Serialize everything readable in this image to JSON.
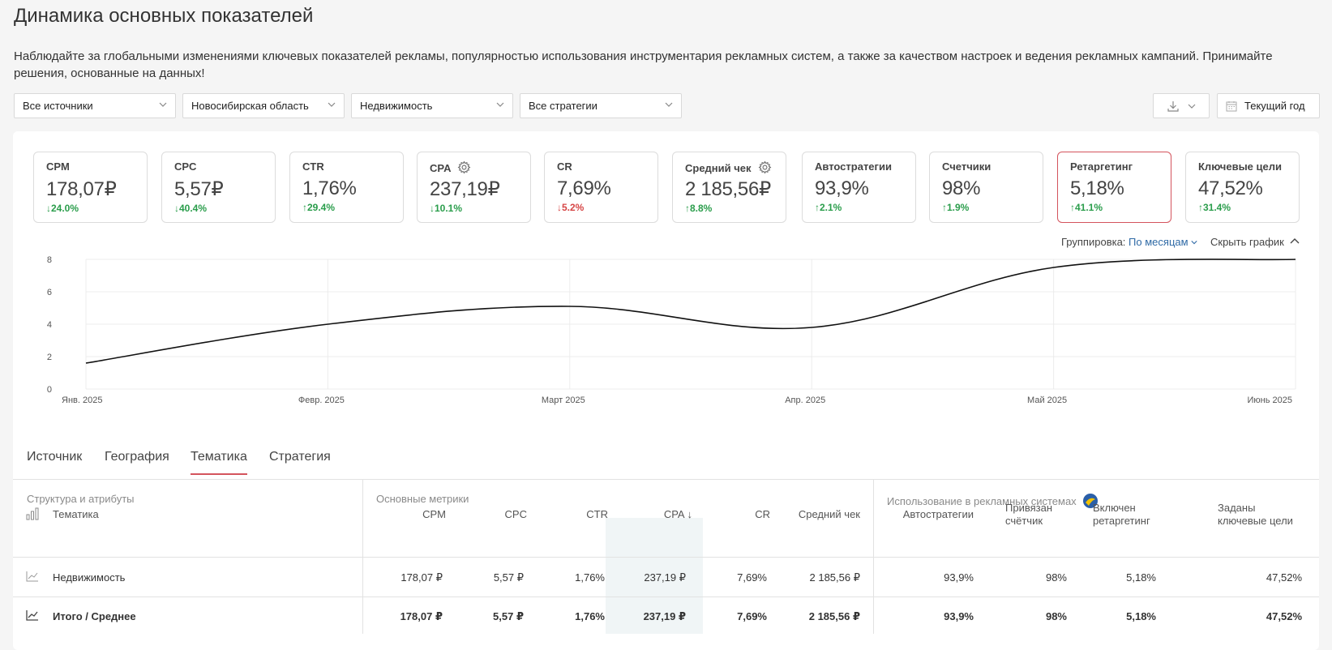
{
  "page": {
    "title": "Динамика основных показателей",
    "description": "Наблюдайте за глобальными изменениями ключевых показателей рекламы, популярностью использования инструментария рекламных систем, а также за качеством настроек и ведения рекламных кампаний. Принимайте решения, основанные на данных!"
  },
  "filters": [
    {
      "value": "Все источники"
    },
    {
      "value": "Новосибирская область"
    },
    {
      "value": "Недвижимость"
    },
    {
      "value": "Все стратегии"
    }
  ],
  "toolbar": {
    "period_label": "Текущий год"
  },
  "kpis": [
    {
      "label": "CPM",
      "value": "178,07₽",
      "delta": "↓24.0%"
    },
    {
      "label": "CPC",
      "value": "5,57₽",
      "delta": "↓40.4%"
    },
    {
      "label": "CTR",
      "value": "1,76%",
      "delta": "↑29.4%"
    },
    {
      "label": "CPA",
      "value": "237,19₽",
      "delta": "↓10.1%"
    },
    {
      "label": "CR",
      "value": "7,69%",
      "delta": "↓5.2%"
    },
    {
      "label": "Средний чек",
      "value": "2 185,56₽",
      "delta": "↑8.8%"
    },
    {
      "label": "Автостратегии",
      "value": "93,9%",
      "delta": "↑2.1%"
    },
    {
      "label": "Счетчики",
      "value": "98%",
      "delta": "↑1.9%"
    },
    {
      "label": "Ретаргетинг",
      "value": "5,18%",
      "delta": "↑41.1%"
    },
    {
      "label": "Ключевые цели",
      "value": "47,52%",
      "delta": "↑31.4%"
    }
  ],
  "chart_controls": {
    "grouping_label": "Группировка:",
    "grouping_value": "По месяцам",
    "hide_label": "Скрыть график"
  },
  "chart_data": {
    "type": "line",
    "categories": [
      "Янв. 2025",
      "Февр. 2025",
      "Март 2025",
      "Апр. 2025",
      "Май 2025",
      "Июнь 2025"
    ],
    "series": [
      {
        "values": [
          1.6,
          4.0,
          5.1,
          3.8,
          7.5,
          8.0
        ]
      }
    ],
    "y_ticks": [
      "0",
      "2",
      "4",
      "6",
      "8"
    ],
    "ylim": [
      0,
      8
    ],
    "grid": true,
    "line_color": "#111111"
  },
  "tabs": [
    "Источник",
    "География",
    "Тематика",
    "Стратегия"
  ],
  "table": {
    "groups": [
      "Структура и атрибуты",
      "Основные метрики",
      "Использование в рекламных системах"
    ],
    "columns": [
      "Тематика",
      "CPM",
      "CPC",
      "CTR",
      "CPA",
      "CR",
      "Средний чек",
      "Автостратегии",
      "Привязан счётчик",
      "Включен ретаргетинг",
      "Заданы ключевые цели"
    ],
    "rows": [
      [
        "Недвижимость",
        "178,07 ₽",
        "5,57 ₽",
        "1,76%",
        "237,19 ₽",
        "7,69%",
        "2 185,56 ₽",
        "93,9%",
        "98%",
        "5,18%",
        "47,52%"
      ]
    ],
    "total": [
      "Итого / Среднее",
      "178,07 ₽",
      "5,57 ₽",
      "1,76%",
      "237,19 ₽",
      "7,69%",
      "2 185,56 ₽",
      "93,9%",
      "98%",
      "5,18%",
      "47,52%"
    ]
  }
}
